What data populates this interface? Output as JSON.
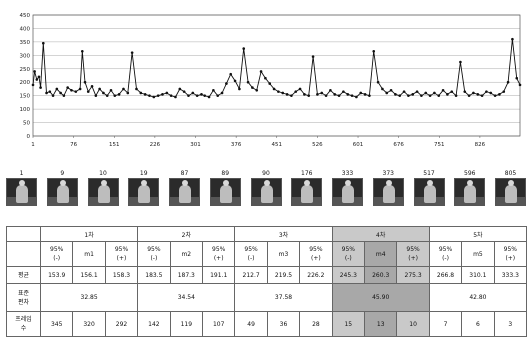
{
  "chart_data": {
    "type": "line",
    "title": "",
    "xlabel": "",
    "ylabel": "",
    "ylim": [
      0,
      450
    ],
    "y_ticks": [
      0,
      50,
      100,
      150,
      200,
      250,
      300,
      350,
      400,
      450
    ],
    "x_ticks": [
      1,
      76,
      151,
      226,
      301,
      376,
      451,
      526,
      601,
      676,
      751,
      826
    ],
    "x_tick_labels": [
      "1",
      "76",
      "151",
      "226",
      "301",
      "376",
      "451",
      "526",
      "601",
      "676",
      "751",
      "826"
    ],
    "xlim": [
      1,
      900
    ],
    "grid": true,
    "series": [
      {
        "color": "#111111",
        "x": [
          1,
          4,
          8,
          12,
          15,
          20,
          26,
          32,
          38,
          45,
          52,
          58,
          65,
          72,
          80,
          88,
          92,
          97,
          103,
          110,
          117,
          124,
          131,
          138,
          145,
          152,
          160,
          168,
          176,
          184,
          192,
          200,
          208,
          216,
          224,
          232,
          240,
          248,
          256,
          264,
          272,
          280,
          288,
          296,
          304,
          312,
          318,
          326,
          334,
          342,
          350,
          358,
          366,
          374,
          382,
          390,
          398,
          406,
          414,
          422,
          430,
          438,
          446,
          454,
          462,
          470,
          478,
          486,
          494,
          502,
          510,
          518,
          526,
          534,
          542,
          550,
          558,
          566,
          574,
          582,
          590,
          598,
          606,
          614,
          622,
          630,
          638,
          646,
          654,
          662,
          670,
          678,
          686,
          694,
          702,
          710,
          718,
          726,
          734,
          742,
          750,
          758,
          766,
          774,
          782,
          790,
          798,
          806,
          814,
          822,
          830,
          838,
          846,
          854,
          862,
          870,
          878,
          886,
          894,
          900
        ],
        "y": [
          190,
          240,
          210,
          220,
          180,
          345,
          160,
          165,
          150,
          175,
          160,
          150,
          180,
          170,
          165,
          175,
          315,
          200,
          165,
          185,
          150,
          175,
          160,
          150,
          170,
          150,
          155,
          175,
          160,
          310,
          175,
          160,
          155,
          150,
          145,
          150,
          155,
          160,
          150,
          145,
          175,
          165,
          150,
          160,
          150,
          155,
          150,
          145,
          170,
          150,
          160,
          195,
          230,
          205,
          175,
          325,
          200,
          180,
          170,
          240,
          215,
          195,
          175,
          165,
          160,
          155,
          150,
          165,
          175,
          155,
          150,
          295,
          155,
          160,
          150,
          170,
          155,
          150,
          165,
          155,
          150,
          145,
          160,
          155,
          150,
          315,
          200,
          175,
          160,
          170,
          155,
          150,
          165,
          150,
          155,
          165,
          150,
          160,
          150,
          160,
          150,
          170,
          155,
          165,
          150,
          275,
          165,
          150,
          160,
          155,
          150,
          165,
          160,
          150,
          155,
          165,
          200,
          360,
          215,
          190
        ]
      }
    ]
  },
  "thumbnails": [
    "1",
    "9",
    "10",
    "19",
    "87",
    "89",
    "90",
    "176",
    "333",
    "373",
    "517",
    "596",
    "805"
  ],
  "table": {
    "groups": [
      "1차",
      "2차",
      "3차",
      "4차",
      "5차"
    ],
    "sub": [
      [
        "95%",
        "(-)"
      ],
      "m1",
      [
        "95%",
        "(+)"
      ],
      [
        "95%",
        "(-)"
      ],
      "m2",
      [
        "95%",
        "(+)"
      ],
      [
        "95%",
        "(-)"
      ],
      "m3",
      [
        "95%",
        "(+)"
      ],
      [
        "95%",
        "(-)"
      ],
      "m4",
      [
        "95%",
        "(+)"
      ],
      [
        "95%",
        "(-)"
      ],
      "m5",
      [
        "95%",
        "(+)"
      ]
    ],
    "rows": {
      "mean": {
        "label": "평균",
        "values": [
          "153.9",
          "156.1",
          "158.3",
          "183.5",
          "187.3",
          "191.1",
          "212.7",
          "219.5",
          "226.2",
          "245.3",
          "260.3",
          "275.3",
          "266.8",
          "310.1",
          "333.3"
        ]
      },
      "std": {
        "label": [
          "표준",
          "편차"
        ],
        "values": [
          "32.85",
          "34.54",
          "37.58",
          "45.90",
          "42.80"
        ]
      },
      "frames": {
        "label": [
          "프레임",
          "수"
        ],
        "values": [
          "345",
          "320",
          "292",
          "142",
          "119",
          "107",
          "49",
          "36",
          "28",
          "15",
          "13",
          "10",
          "7",
          "6",
          "3"
        ]
      }
    }
  }
}
